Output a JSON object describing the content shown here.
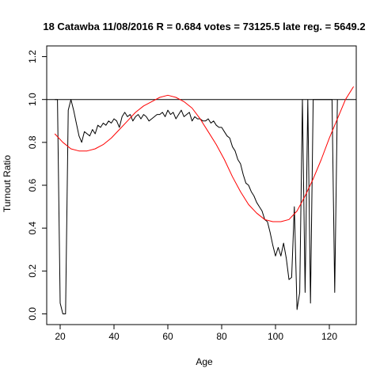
{
  "chart_data": {
    "type": "line",
    "title": "18 Catawba 11/08/2016 R = 0.684 votes = 73125.5 late reg. = 5649.2",
    "xlabel": "Age",
    "ylabel": "Turnout Ratio",
    "xlim": [
      15,
      130
    ],
    "ylim": [
      -0.05,
      1.25
    ],
    "xticks": [
      "20",
      "40",
      "60",
      "80",
      "100",
      "120"
    ],
    "yticks": [
      "0.0",
      "0.2",
      "0.4",
      "0.6",
      "0.8",
      "1.0",
      "1.2"
    ],
    "reference_line": 1.0,
    "colors": {
      "observed": "#000000",
      "fit": "#ff0000",
      "reference": "#000000"
    },
    "series": [
      {
        "x": [
          18,
          19,
          20,
          21,
          22,
          23,
          24,
          25,
          26,
          27,
          28,
          29,
          30,
          31,
          32,
          33,
          34,
          35,
          36,
          37,
          38,
          39,
          40,
          41,
          42,
          43,
          44,
          45,
          46,
          47,
          48,
          49,
          50,
          51,
          52,
          53,
          54,
          55,
          56,
          57,
          58,
          59,
          60,
          61,
          62,
          63,
          64,
          65,
          66,
          67,
          68,
          69,
          70,
          71,
          72,
          73,
          74,
          75,
          76,
          77,
          78,
          79,
          80,
          81,
          82,
          83,
          84,
          85,
          86,
          87,
          88,
          89,
          90,
          91,
          92,
          93,
          94,
          95,
          96,
          97,
          98,
          99,
          100,
          101,
          102,
          103,
          104,
          105,
          106,
          107,
          108,
          109,
          110,
          111,
          112,
          113,
          114,
          115,
          116,
          117,
          118,
          119,
          120,
          121,
          122,
          123
        ],
        "values": [
          1.0,
          1.0,
          0.05,
          0.0,
          0.0,
          0.95,
          1.0,
          0.95,
          0.89,
          0.83,
          0.8,
          0.85,
          0.84,
          0.83,
          0.86,
          0.84,
          0.88,
          0.87,
          0.89,
          0.88,
          0.9,
          0.89,
          0.91,
          0.9,
          0.87,
          0.92,
          0.94,
          0.92,
          0.93,
          0.9,
          0.92,
          0.93,
          0.91,
          0.93,
          0.92,
          0.9,
          0.91,
          0.92,
          0.93,
          0.93,
          0.94,
          0.92,
          0.95,
          0.93,
          0.94,
          0.91,
          0.93,
          0.95,
          0.92,
          0.93,
          0.94,
          0.9,
          0.92,
          0.91,
          0.91,
          0.9,
          0.9,
          0.91,
          0.89,
          0.9,
          0.88,
          0.87,
          0.87,
          0.85,
          0.83,
          0.82,
          0.78,
          0.76,
          0.72,
          0.7,
          0.65,
          0.61,
          0.6,
          0.57,
          0.55,
          0.52,
          0.5,
          0.48,
          0.44,
          0.43,
          0.38,
          0.32,
          0.27,
          0.31,
          0.27,
          0.33,
          0.26,
          0.16,
          0.17,
          0.5,
          0.02,
          0.1,
          1.0,
          0.1,
          1.0,
          0.05,
          1.0,
          1.0,
          1.0,
          1.0,
          1.0,
          1.0,
          1.0,
          1.0,
          0.1,
          1.0
        ]
      },
      {
        "x": [
          18,
          21,
          24,
          27,
          30,
          33,
          36,
          39,
          42,
          45,
          48,
          51,
          54,
          57,
          60,
          63,
          66,
          69,
          72,
          75,
          78,
          81,
          84,
          87,
          90,
          93,
          96,
          99,
          102,
          105,
          108,
          111,
          114,
          117,
          120,
          123,
          126,
          129
        ],
        "values": [
          0.84,
          0.8,
          0.77,
          0.76,
          0.76,
          0.77,
          0.79,
          0.82,
          0.86,
          0.9,
          0.94,
          0.97,
          0.99,
          1.01,
          1.02,
          1.01,
          0.99,
          0.96,
          0.91,
          0.85,
          0.79,
          0.72,
          0.64,
          0.57,
          0.51,
          0.47,
          0.44,
          0.43,
          0.43,
          0.44,
          0.48,
          0.55,
          0.63,
          0.72,
          0.82,
          0.91,
          1.0,
          1.06
        ]
      }
    ]
  }
}
